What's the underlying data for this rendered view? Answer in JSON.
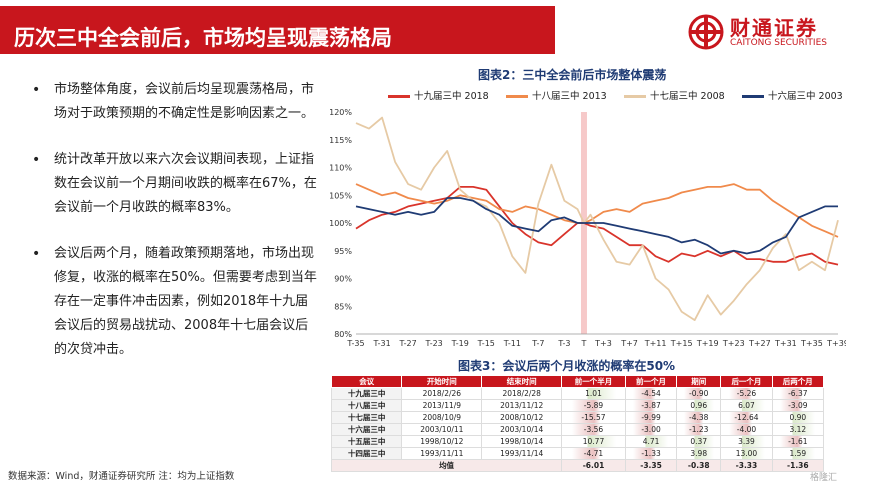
{
  "header": {
    "title": "历次三中全会前后，市场均呈现震荡格局",
    "logo_name": "财通证券",
    "logo_en": "CAITONG SECURITIES"
  },
  "bullets": [
    "市场整体角度，会议前后均呈现震荡格局，市场对于政策预期的不确定性是影响因素之一。",
    "统计改革开放以来六次会议期间表现，上证指数在会议前一个月期间收跌的概率在67%，在会议前一个月收跌的概率83%。",
    "会议后两个月，随着政策预期落地，市场出现修复，收涨的概率在50%。但需要考虑到当年存在一定事件冲击因素，例如2018年十九届会议后的贸易战扰动、2008年十七届会议后的次贷冲击。"
  ],
  "source": "数据来源：Wind，财通证券研究所  注：均为上证指数",
  "watermark": "格隆汇",
  "colors": {
    "brand": "#c8161d",
    "navy": "#1f3b74"
  },
  "chart_data": {
    "type": "line",
    "title": "图表2：三中全会前后市场整体震荡",
    "ylim": [
      80,
      120
    ],
    "yticks": [
      "80%",
      "85%",
      "90%",
      "95%",
      "100%",
      "105%",
      "110%",
      "115%",
      "120%"
    ],
    "xticks": [
      "T-35",
      "T-31",
      "T-27",
      "T-23",
      "T-19",
      "T-15",
      "T-11",
      "T-7",
      "T-3",
      "T",
      "T+3",
      "T+7",
      "T+11",
      "T+15",
      "T+19",
      "T+23",
      "T+27",
      "T+31",
      "T+35",
      "T+39"
    ],
    "x": [
      -35,
      -33,
      -31,
      -29,
      -27,
      -25,
      -23,
      -21,
      -19,
      -17,
      -15,
      -13,
      -11,
      -9,
      -7,
      -5,
      -3,
      -1,
      0,
      1,
      3,
      5,
      7,
      9,
      11,
      13,
      15,
      17,
      19,
      21,
      23,
      25,
      27,
      29,
      31,
      33,
      35,
      37,
      39
    ],
    "series": [
      {
        "name": "十九届三中 2018",
        "color": "#d9342b",
        "values": [
          99,
          100.5,
          101.5,
          102,
          103,
          103.5,
          104,
          104.5,
          106.5,
          106.5,
          106,
          103,
          100,
          98,
          96.5,
          96,
          98,
          100,
          100,
          99.5,
          99,
          97.5,
          96,
          96,
          94,
          93,
          94.5,
          94,
          95,
          94,
          95,
          93.5,
          93.5,
          93,
          93,
          94,
          94.5,
          93,
          92.5
        ]
      },
      {
        "name": "十八届三中 2013",
        "color": "#f08a4b",
        "values": [
          107,
          106,
          105,
          105.5,
          104.5,
          104,
          103.5,
          104,
          105,
          104.5,
          104,
          102.5,
          102,
          103,
          102.5,
          101.5,
          100.5,
          100,
          100,
          100.5,
          102,
          102.5,
          102,
          103.5,
          104,
          104.5,
          105.5,
          106,
          106.5,
          106.5,
          107,
          106,
          106,
          104,
          102.5,
          101,
          99.5,
          98.5,
          97.5
        ]
      },
      {
        "name": "十七届三中 2008",
        "color": "#e6caa5",
        "values": [
          118,
          117,
          119,
          111,
          107,
          106,
          110,
          113,
          106,
          104,
          103,
          100,
          94,
          91,
          103.5,
          110.5,
          104,
          102.5,
          100,
          101.5,
          97,
          93,
          92.5,
          96,
          90,
          88,
          84,
          82.5,
          87,
          83.5,
          86,
          89,
          91.5,
          95.5,
          98,
          91.5,
          93,
          91.5,
          100.5
        ]
      },
      {
        "name": "十六届三中 2003",
        "color": "#1f3b74",
        "values": [
          103,
          102.5,
          102,
          101.5,
          102,
          101.5,
          102,
          104.5,
          104.5,
          104,
          102.5,
          101.5,
          99.5,
          99,
          98.5,
          100.5,
          101,
          100,
          100,
          100,
          100,
          99.5,
          99,
          98.5,
          98,
          97.5,
          96.5,
          97,
          96,
          94.5,
          95,
          94.5,
          95,
          96.5,
          97.5,
          101,
          102,
          103,
          103
        ]
      }
    ]
  },
  "table": {
    "title": "图表3：会议后两个月收涨的概率在50%",
    "headers": [
      "会议",
      "开始时间",
      "结束时间",
      "前一个半月",
      "前一个月",
      "期间",
      "后一个月",
      "后两个月"
    ],
    "rows": [
      [
        "十九届三中",
        "2018/2/26",
        "2018/2/28",
        "1.01",
        "-4.54",
        "-0.90",
        "-5.26",
        "-6.37"
      ],
      [
        "十八届三中",
        "2013/11/9",
        "2013/11/12",
        "-5.89",
        "-3.87",
        "0.96",
        "6.07",
        "-3.09"
      ],
      [
        "十七届三中",
        "2008/10/9",
        "2008/10/12",
        "-15.57",
        "-9.99",
        "-4.38",
        "-12.64",
        "0.90"
      ],
      [
        "十六届三中",
        "2003/10/11",
        "2003/10/14",
        "-3.56",
        "-3.00",
        "-1.23",
        "-4.00",
        "3.12"
      ],
      [
        "十五届三中",
        "1998/10/12",
        "1998/10/14",
        "10.77",
        "4.71",
        "0.37",
        "3.39",
        "-1.61"
      ],
      [
        "十四届三中",
        "1993/11/11",
        "1993/11/14",
        "-4.71",
        "-1.33",
        "3.98",
        "13.00",
        "1.59"
      ]
    ],
    "avg": [
      "均值",
      "-6.01",
      "-3.35",
      "-0.38",
      "-3.33",
      "-1.36"
    ]
  }
}
